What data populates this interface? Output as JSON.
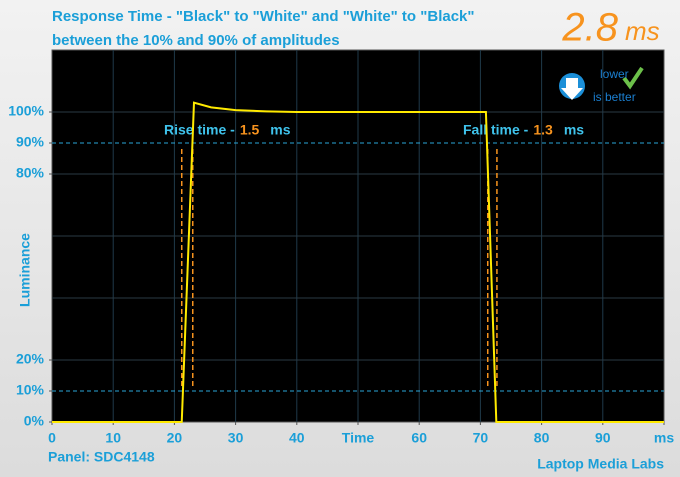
{
  "chart_data": {
    "type": "line",
    "title": "Response Time - \"Black\" to \"White\" and \"White\" to \"Black\"",
    "subtitle": "between the 10% and 90% of amplitudes",
    "total_value": 2.8,
    "total_unit": "ms",
    "badge": [
      "lower",
      "is better"
    ],
    "y_label": "Luminance",
    "x": [
      0,
      21.2,
      23.2,
      26,
      30,
      35,
      40,
      50,
      60,
      70.9,
      72.6,
      80,
      100
    ],
    "values": [
      0,
      0,
      103,
      101.5,
      100.6,
      100.2,
      100,
      100,
      100,
      100,
      0,
      0,
      0
    ],
    "color": "#ffea00",
    "xlim": [
      0,
      100
    ],
    "ylim": [
      0,
      120
    ],
    "xticks": [
      0,
      10,
      20,
      30,
      40,
      {
        "value": 50,
        "label": "Time"
      },
      60,
      70,
      80,
      90,
      {
        "value": 100,
        "label": "ms"
      }
    ],
    "yticks": [
      {
        "value": 0,
        "label": "0%"
      },
      {
        "value": 10,
        "label": "10%"
      },
      {
        "value": 20,
        "label": "20%"
      },
      {
        "value": 80,
        "label": "80%"
      },
      {
        "value": 90,
        "label": "90%"
      },
      {
        "value": 100,
        "label": "100%"
      }
    ],
    "grid_x": [
      10,
      20,
      30,
      40,
      50,
      60,
      70,
      80,
      90
    ],
    "grid_y": [
      20,
      40,
      60,
      80,
      100
    ],
    "threshold_lines": [
      10,
      90
    ],
    "rise": {
      "label": "Rise time -",
      "value": 1.5,
      "unit": "ms",
      "markers": [
        21.2,
        23.0
      ]
    },
    "fall": {
      "label": "Fall time -",
      "value": 1.3,
      "unit": "ms",
      "markers": [
        71.2,
        72.7
      ]
    },
    "panel": "Panel: SDC4148",
    "credit": "Laptop Media Labs"
  }
}
